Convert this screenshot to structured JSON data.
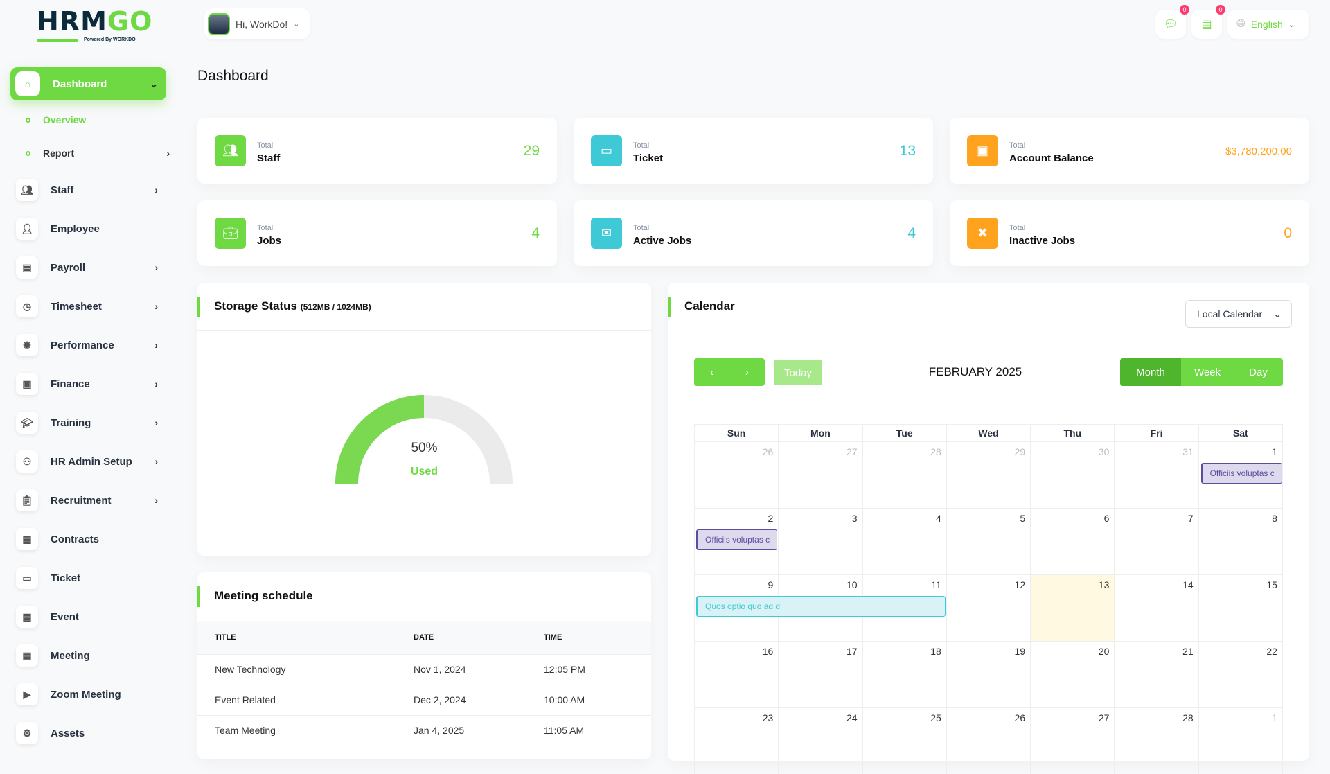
{
  "brand": {
    "logo_text": "HRMGO",
    "powered": "Powered By WORKDO"
  },
  "header": {
    "greeting": "Hi, WorkDo!",
    "messages_count": "0",
    "notifications_count": "0",
    "language": "English"
  },
  "sidebar": {
    "dashboard": "Dashboard",
    "sub": [
      {
        "label": "Overview",
        "active": true
      },
      {
        "label": "Report"
      }
    ],
    "items": [
      {
        "label": "Staff",
        "icon": "users-icon",
        "arrow": true
      },
      {
        "label": "Employee",
        "icon": "user-icon"
      },
      {
        "label": "Payroll",
        "icon": "receipt-icon",
        "arrow": true
      },
      {
        "label": "Timesheet",
        "icon": "clock-icon",
        "arrow": true
      },
      {
        "label": "Performance",
        "icon": "performance-icon",
        "arrow": true
      },
      {
        "label": "Finance",
        "icon": "wallet-icon",
        "arrow": true
      },
      {
        "label": "Training",
        "icon": "graduation-cap-icon",
        "arrow": true
      },
      {
        "label": "HR Admin Setup",
        "icon": "user-plus-icon",
        "arrow": true
      },
      {
        "label": "Recruitment",
        "icon": "clipboard-icon",
        "arrow": true
      },
      {
        "label": "Contracts",
        "icon": "contract-icon"
      },
      {
        "label": "Ticket",
        "icon": "ticket-icon"
      },
      {
        "label": "Event",
        "icon": "calendar-event-icon"
      },
      {
        "label": "Meeting",
        "icon": "calendar-meeting-icon"
      },
      {
        "label": "Zoom Meeting",
        "icon": "video-icon"
      },
      {
        "label": "Assets",
        "icon": "assets-icon"
      }
    ]
  },
  "page_title": "Dashboard",
  "stats": [
    {
      "small": "Total",
      "label": "Staff",
      "value": "29",
      "color": "#6fd943",
      "icon": "users-icon"
    },
    {
      "small": "Total",
      "label": "Ticket",
      "value": "13",
      "color": "#3ec9d6",
      "icon": "ticket-icon"
    },
    {
      "small": "Total",
      "label": "Account Balance",
      "value": "$3,780,200.00",
      "color": "#ffa21d",
      "icon": "wallet-icon"
    },
    {
      "small": "Total",
      "label": "Jobs",
      "value": "4",
      "color": "#6fd943",
      "icon": "briefcase-icon"
    },
    {
      "small": "Total",
      "label": "Active Jobs",
      "value": "4",
      "color": "#3ec9d6",
      "icon": "active-jobs-icon"
    },
    {
      "small": "Total",
      "label": "Inactive Jobs",
      "value": "0",
      "color": "#ffa21d",
      "icon": "inactive-jobs-icon"
    }
  ],
  "storage": {
    "title": "Storage Status",
    "detail": "(512MB / 1024MB)",
    "percent_label": "50%",
    "percent": 50,
    "used_label": "Used"
  },
  "meeting": {
    "title": "Meeting schedule",
    "columns": [
      "TITLE",
      "DATE",
      "TIME"
    ],
    "rows": [
      [
        "New Technology",
        "Nov 1, 2024",
        "12:05 PM"
      ],
      [
        "Event Related",
        "Dec 2, 2024",
        "10:00 AM"
      ],
      [
        "Team Meeting",
        "Jan 4, 2025",
        "11:05 AM"
      ]
    ]
  },
  "calendar": {
    "title": "Calendar",
    "source": "Local Calendar",
    "today": "Today",
    "month_title": "FEBRUARY 2025",
    "views": [
      "Month",
      "Week",
      "Day"
    ],
    "active_view": "Month",
    "days": [
      "Sun",
      "Mon",
      "Tue",
      "Wed",
      "Thu",
      "Fri",
      "Sat"
    ],
    "weeks": [
      [
        "26",
        "27",
        "28",
        "29",
        "30",
        "31",
        "1"
      ],
      [
        "2",
        "3",
        "4",
        "5",
        "6",
        "7",
        "8"
      ],
      [
        "9",
        "10",
        "11",
        "12",
        "13",
        "14",
        "15"
      ],
      [
        "16",
        "17",
        "18",
        "19",
        "20",
        "21",
        "22"
      ],
      [
        "23",
        "24",
        "25",
        "26",
        "27",
        "28",
        "1"
      ]
    ],
    "events": [
      {
        "title": "Officiis voluptas c",
        "week": 0,
        "day": 6,
        "span": 1,
        "color": "purple"
      },
      {
        "title": "Officiis voluptas c",
        "week": 1,
        "day": 0,
        "span": 1,
        "color": "purple"
      },
      {
        "title": "Quos optio quo ad d",
        "week": 2,
        "day": 0,
        "span": 3,
        "color": "cyan"
      }
    ],
    "today_date": "13"
  }
}
